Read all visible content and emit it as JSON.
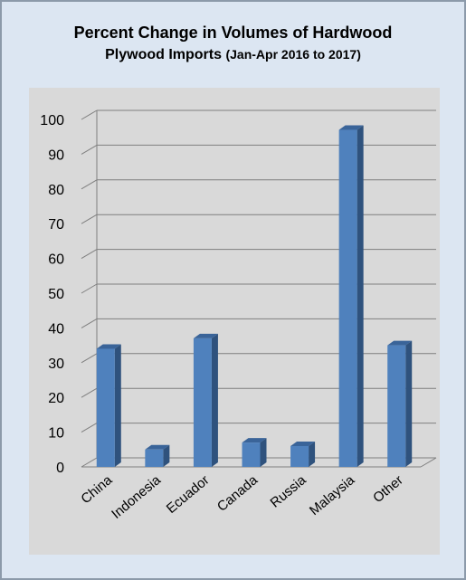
{
  "chart_data": {
    "type": "bar",
    "title_line1": "Percent Change in Volumes of Hardwood",
    "title_line2": "Plywood Imports",
    "title_suffix": "(Jan-Apr 2016 to 2017)",
    "xlabel": "",
    "ylabel": "",
    "categories": [
      "China",
      "Indonesia",
      "Ecuador",
      "Canada",
      "Russia",
      "Malaysia",
      "Other"
    ],
    "values": [
      34,
      5,
      37,
      7,
      6,
      97,
      35
    ],
    "ylim": [
      0,
      100
    ],
    "yticks": [
      0,
      10,
      20,
      30,
      40,
      50,
      60,
      70,
      80,
      90,
      100
    ],
    "grid": true,
    "bar_color": "#4f81bd",
    "bar_side_color": "#2f527d",
    "bar_top_color": "#3a6499"
  }
}
